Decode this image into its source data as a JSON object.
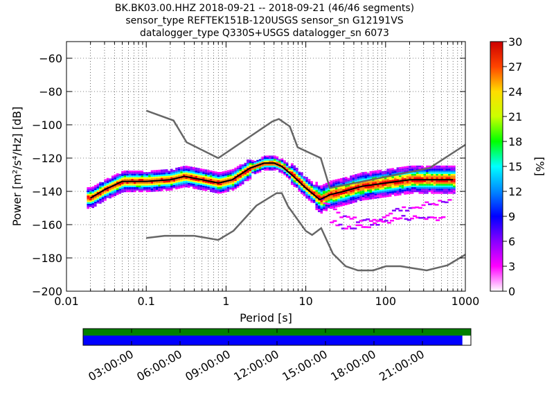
{
  "title_lines": [
    "BK.BK03.00.HHZ   2018-09-21 -- 2018-09-21  (46/46 segments)",
    "sensor_type REFTEK151B-120USGS sensor_sn G12191VS",
    "datalogger_type Q330S+USGS datalogger_sn 6073"
  ],
  "chart_data": {
    "type": "heatmap",
    "xlabel": "Period [s]",
    "ylabel": "Power [m²/s⁴/Hz] [dB]",
    "x_scale": "log",
    "xlim": [
      0.01,
      1000
    ],
    "ylim": [
      -200,
      -50
    ],
    "x_ticks": [
      0.01,
      0.1,
      1,
      10,
      100,
      1000
    ],
    "x_tick_labels": [
      "0.01",
      "0.1",
      "1",
      "10",
      "100",
      "1000"
    ],
    "y_ticks": [
      -200,
      -180,
      -160,
      -140,
      -120,
      -100,
      -80,
      -60
    ],
    "y_tick_labels": [
      "−200",
      "−180",
      "−160",
      "−140",
      "−120",
      "−100",
      "−80",
      "−60"
    ],
    "grid": true,
    "colorbar": {
      "label": "[%]",
      "range": [
        0,
        30
      ],
      "ticks": [
        0,
        3,
        6,
        9,
        12,
        15,
        18,
        21,
        24,
        27,
        30
      ],
      "tick_labels": [
        "0",
        "3",
        "6",
        "9",
        "12",
        "15",
        "18",
        "21",
        "24",
        "27",
        "30"
      ],
      "colormap": [
        "#ffffff",
        "#ff00ff",
        "#8800ff",
        "#0000ff",
        "#0088ff",
        "#00ffff",
        "#00ff00",
        "#ffff00",
        "#ff8800",
        "#ff0000",
        "#aa0000"
      ]
    },
    "noise_model_high": {
      "period": [
        0.1,
        0.22,
        0.32,
        0.8,
        3.8,
        4.6,
        6.3,
        7.9,
        15.4,
        20,
        354.8,
        1000
      ],
      "power": [
        -91.5,
        -97.4,
        -110.5,
        -120,
        -98,
        -96.5,
        -101,
        -113.5,
        -120,
        -138,
        -126,
        -112
      ]
    },
    "noise_model_low": {
      "period": [
        0.1,
        0.17,
        0.4,
        0.8,
        1.24,
        2.4,
        4.3,
        5,
        6,
        10,
        12,
        15.6,
        21.9,
        31.6,
        45,
        70,
        101,
        154,
        328,
        600,
        1000
      ],
      "power": [
        -168,
        -166.7,
        -166.7,
        -169.2,
        -163.7,
        -148.6,
        -141.1,
        -141.1,
        -149,
        -163.8,
        -166.2,
        -162.1,
        -177.5,
        -185,
        -187.5,
        -187.5,
        -185,
        -185,
        -187.5,
        -184.4,
        -178
      ]
    },
    "mean_curve": {
      "period": [
        0.02,
        0.03,
        0.05,
        0.1,
        0.2,
        0.3,
        0.5,
        0.8,
        1.2,
        2,
        3,
        4,
        5,
        7,
        10,
        15,
        20,
        30,
        50,
        100,
        200,
        500,
        700
      ],
      "power": [
        -144,
        -139,
        -134,
        -134,
        -133,
        -131,
        -133,
        -135,
        -133,
        -126,
        -123,
        -123,
        -125,
        -131,
        -138,
        -145,
        -142,
        -140,
        -137,
        -135,
        -133,
        -133,
        -133
      ]
    },
    "secondary_branches": [
      {
        "period": [
          15,
          20,
          30,
          50,
          80,
          120,
          200,
          300,
          600
        ],
        "power": [
          -146,
          -150,
          -156,
          -158,
          -156,
          -152,
          -150,
          -148,
          -146
        ]
      },
      {
        "period": [
          20,
          25,
          40,
          60,
          100,
          150,
          250,
          500
        ],
        "power": [
          -158,
          -161,
          -162,
          -160,
          -158,
          -156,
          -156,
          -156
        ]
      }
    ],
    "time_axis": {
      "labels": [
        "03:00:00",
        "06:00:00",
        "09:00:00",
        "12:00:00",
        "15:00:00",
        "18:00:00",
        "21:00:00"
      ],
      "hours": [
        3,
        6,
        9,
        12,
        15,
        18,
        21
      ],
      "range_hours": [
        0,
        24
      ],
      "coverage_color": "#008000",
      "data_color": "#0000ff",
      "data_coverage_fraction": 0.978
    }
  }
}
